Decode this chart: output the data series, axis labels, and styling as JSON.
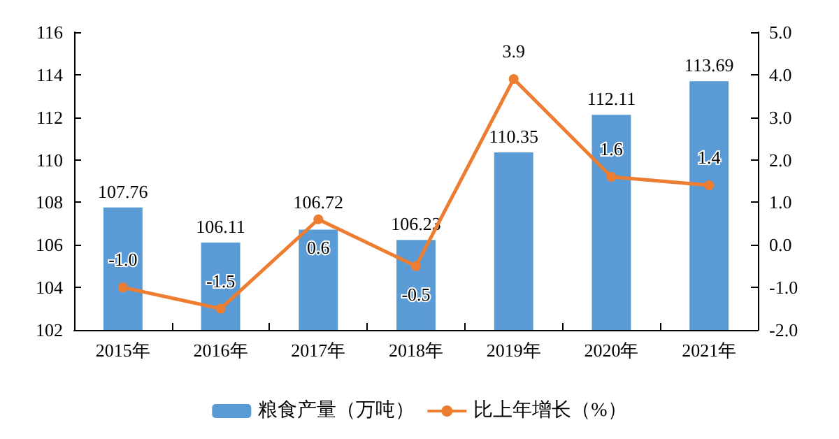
{
  "chart_data": {
    "type": "bar",
    "categories": [
      "2015年",
      "2016年",
      "2017年",
      "2018年",
      "2019年",
      "2020年",
      "2021年"
    ],
    "series": [
      {
        "name": "粮食产量（万吨）",
        "color": "#5b9bd5",
        "values": [
          107.76,
          106.11,
          106.72,
          106.23,
          110.35,
          112.11,
          113.69
        ],
        "data_labels": true
      },
      {
        "name": "比上年增长（%）",
        "type": "line",
        "axis": "y2",
        "color": "#ed7d31",
        "values": [
          -1.0,
          -1.5,
          0.6,
          -0.5,
          3.9,
          1.6,
          1.4
        ],
        "value_labels": [
          "-1.0",
          "-1.5",
          "0.6",
          "-0.5",
          "3.9",
          "1.6",
          "1.4"
        ],
        "marker": "circle"
      }
    ],
    "ylim": [
      102,
      116
    ],
    "yticks": [
      102,
      104,
      106,
      108,
      110,
      112,
      114,
      116
    ],
    "y2lim": [
      -2,
      5
    ],
    "y2ticks": [
      {
        "value": -2,
        "label": "-2.0"
      },
      {
        "value": -1,
        "label": "-1.0"
      },
      {
        "value": 0,
        "label": "0.0"
      },
      {
        "value": 1,
        "label": "1.0"
      },
      {
        "value": 2,
        "label": "2.0"
      },
      {
        "value": 3,
        "label": "3.0"
      },
      {
        "value": 4,
        "label": "4.0"
      },
      {
        "value": 5,
        "label": "5.0"
      }
    ],
    "grid": false,
    "legend": "bottom"
  }
}
